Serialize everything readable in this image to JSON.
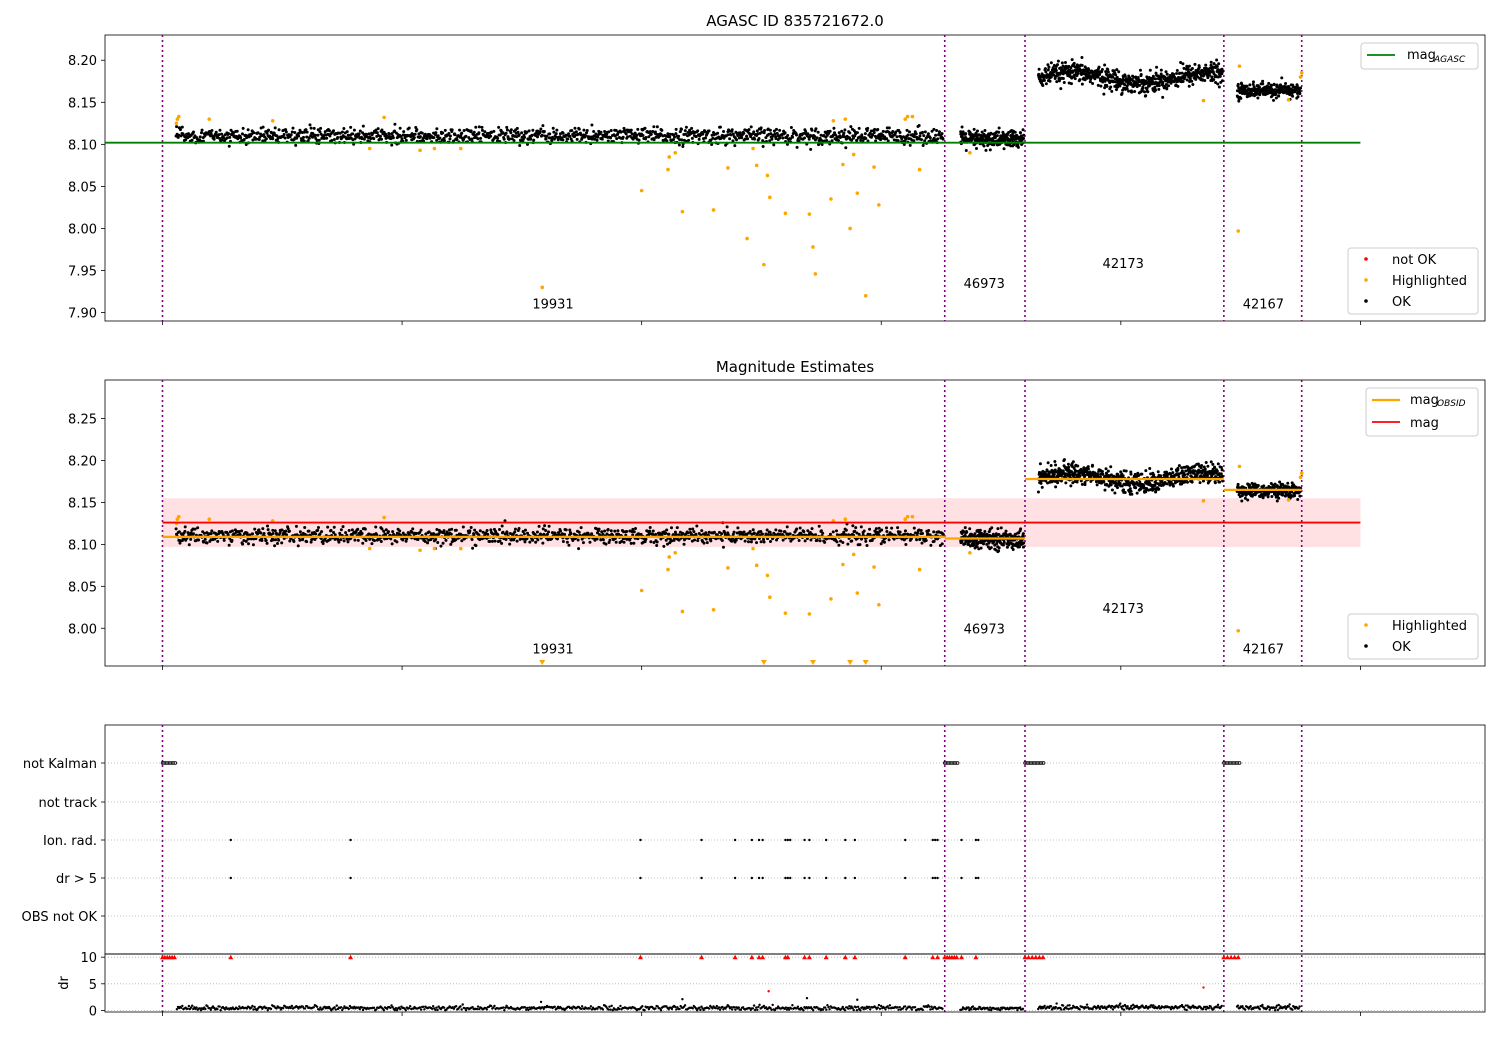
{
  "colors": {
    "ok": "#000000",
    "highlighted": "#ffa500",
    "not_ok": "#ff0000",
    "agasc_line": "#008000",
    "mag_line": "#ff0000",
    "obsid_line": "#ffa500",
    "band": "#ffe0e3",
    "vline": "#800080",
    "grid": "#b0b0b0"
  },
  "chart_data": [
    {
      "id": "top",
      "type": "scatter",
      "title": "AGASC ID 835721672.0",
      "xlim": [
        -240,
        5520
      ],
      "ylim": [
        7.89,
        8.23
      ],
      "xticks": [
        0,
        1000,
        2000,
        3000,
        4000,
        5000
      ],
      "yticks": [
        7.9,
        7.95,
        8.0,
        8.05,
        8.1,
        8.15,
        8.2
      ],
      "ytick_labels": [
        "7.90",
        "7.95",
        "8.00",
        "8.05",
        "8.10",
        "8.15",
        "8.20"
      ],
      "obs_boundaries": [
        0,
        3265,
        3600,
        4430,
        4755
      ],
      "obsid_labels": [
        {
          "text": "19931",
          "x": 1630,
          "y": 7.905
        },
        {
          "text": "46973",
          "x": 3430,
          "y": 7.929
        },
        {
          "text": "42173",
          "x": 4010,
          "y": 7.953
        },
        {
          "text": "42167",
          "x": 4595,
          "y": 7.905
        }
      ],
      "agasc_line": {
        "x": [
          -240,
          5000
        ],
        "y": 8.102
      },
      "ok_segments": [
        {
          "x0": 55,
          "x1": 3260,
          "base": 8.11,
          "spread": 0.008,
          "n": 1300
        },
        {
          "x0": 3330,
          "x1": 3595,
          "base": 8.106,
          "spread": 0.009,
          "n": 260
        },
        {
          "x0": 3655,
          "x1": 4425,
          "base": 8.179,
          "spread": 0.01,
          "n": 700
        },
        {
          "x0": 4485,
          "x1": 4750,
          "base": 8.164,
          "spread": 0.007,
          "n": 260
        }
      ],
      "highlighted": {
        "x": [
          58,
          62,
          68,
          195,
          460,
          865,
          925,
          1075,
          1135,
          1245,
          1585,
          2000,
          2110,
          2115,
          2140,
          2170,
          2300,
          2360,
          2440,
          2465,
          2480,
          2510,
          2525,
          2535,
          2600,
          2700,
          2715,
          2725,
          2790,
          2800,
          2840,
          2850,
          2870,
          2885,
          2900,
          2935,
          2970,
          2990,
          3100,
          3110,
          3130,
          3160,
          3370,
          4345,
          4490,
          4495,
          4700,
          4750,
          4755
        ],
        "y": [
          8.125,
          8.13,
          8.133,
          8.13,
          8.128,
          8.095,
          8.132,
          8.093,
          8.095,
          8.095,
          7.93,
          8.045,
          8.07,
          8.085,
          8.09,
          8.02,
          8.022,
          8.072,
          7.988,
          8.095,
          8.075,
          7.957,
          8.063,
          8.037,
          8.018,
          8.017,
          7.978,
          7.946,
          8.035,
          8.128,
          8.076,
          8.13,
          8.0,
          8.088,
          8.042,
          7.92,
          8.073,
          8.028,
          8.13,
          8.133,
          8.133,
          8.07,
          8.09,
          8.152,
          7.997,
          8.193,
          8.153,
          8.18,
          8.185
        ],
        "note": "x/y pairs; 4490→8.190 additional"
      },
      "legend": {
        "position": "top-right",
        "entries": [
          {
            "label": "mag",
            "sub": "AGASC",
            "color": "#008000"
          }
        ]
      },
      "legend2": {
        "position": "bottom-right",
        "entries": [
          {
            "label": "not OK",
            "color": "#ff0000"
          },
          {
            "label": "Highlighted",
            "color": "#ffa500"
          },
          {
            "label": "OK",
            "color": "#000000"
          }
        ]
      }
    },
    {
      "id": "middle",
      "type": "scatter",
      "title": "Magnitude Estimates",
      "xlim": [
        -240,
        5520
      ],
      "ylim": [
        7.955,
        8.296
      ],
      "xticks": [
        0,
        1000,
        2000,
        3000,
        4000,
        5000
      ],
      "yticks": [
        8.0,
        8.05,
        8.1,
        8.15,
        8.2,
        8.25
      ],
      "ytick_labels": [
        "8.00",
        "8.05",
        "8.10",
        "8.15",
        "8.20",
        "8.25"
      ],
      "obs_boundaries": [
        0,
        3265,
        3600,
        4430,
        4755
      ],
      "obsid_labels": [
        {
          "text": "19931",
          "x": 1630,
          "y": 7.97
        },
        {
          "text": "46973",
          "x": 3430,
          "y": 7.994
        },
        {
          "text": "42173",
          "x": 4010,
          "y": 8.018
        },
        {
          "text": "42167",
          "x": 4595,
          "y": 7.97
        }
      ],
      "mag_line": {
        "x": [
          0,
          5000
        ],
        "y": 8.126
      },
      "mag_band": {
        "x": [
          0,
          5000
        ],
        "y": [
          8.097,
          8.155
        ]
      },
      "obsid_lines": [
        {
          "x": [
            0,
            3265
          ],
          "y": 8.109
        },
        {
          "x": [
            3265,
            3600
          ],
          "y": 8.107
        },
        {
          "x": [
            3600,
            4430
          ],
          "y": 8.178
        },
        {
          "x": [
            4430,
            4755
          ],
          "y": 8.165
        }
      ],
      "ok_segments": [
        {
          "x0": 55,
          "x1": 3260,
          "base": 8.11,
          "spread": 0.008,
          "n": 1300
        },
        {
          "x0": 3330,
          "x1": 3595,
          "base": 8.106,
          "spread": 0.009,
          "n": 260
        },
        {
          "x0": 3655,
          "x1": 4425,
          "base": 8.179,
          "spread": 0.01,
          "n": 700
        },
        {
          "x0": 4485,
          "x1": 4750,
          "base": 8.164,
          "spread": 0.007,
          "n": 260
        }
      ],
      "highlighted": {
        "x": [
          58,
          62,
          68,
          195,
          460,
          865,
          925,
          1075,
          1135,
          1245,
          2000,
          2110,
          2115,
          2140,
          2170,
          2300,
          2360,
          2465,
          2480,
          2525,
          2535,
          2600,
          2700,
          2790,
          2800,
          2840,
          2850,
          2885,
          2900,
          2970,
          2990,
          3100,
          3110,
          3130,
          3160,
          3370,
          4345,
          4490,
          4495,
          4700,
          4750,
          4755
        ],
        "y": [
          8.125,
          8.13,
          8.133,
          8.13,
          8.128,
          8.095,
          8.132,
          8.093,
          8.095,
          8.095,
          8.045,
          8.07,
          8.085,
          8.09,
          8.02,
          8.022,
          8.072,
          8.095,
          8.075,
          8.063,
          8.037,
          8.018,
          8.017,
          8.035,
          8.128,
          8.076,
          8.13,
          8.088,
          8.042,
          8.073,
          8.028,
          8.13,
          8.133,
          8.133,
          8.07,
          8.09,
          8.152,
          7.997,
          8.193,
          8.153,
          8.18,
          8.185
        ]
      },
      "below_range_markers": [
        1585,
        2510,
        2715,
        2870,
        2935
      ],
      "legend": {
        "position": "top-right",
        "entries": [
          {
            "label": "mag",
            "sub": "OBSID",
            "color": "#ffa500"
          },
          {
            "label": "mag",
            "sub": "",
            "color": "#ff0000"
          }
        ]
      },
      "legend2": {
        "position": "bottom-right",
        "entries": [
          {
            "label": "Highlighted",
            "color": "#ffa500"
          },
          {
            "label": "OK",
            "color": "#000000"
          }
        ]
      }
    },
    {
      "id": "flags",
      "type": "scatter",
      "xlim": [
        -240,
        5520
      ],
      "categories": [
        "not Kalman",
        "not track",
        "Ion. rad.",
        "dr > 5",
        "OBS not OK"
      ],
      "not_kalman_ranges": [
        [
          0,
          55
        ],
        [
          3265,
          3320
        ],
        [
          3600,
          3680
        ],
        [
          4430,
          4500
        ]
      ],
      "ion_rad_x": [
        285,
        785,
        1995,
        2250,
        2390,
        2460,
        2490,
        2505,
        2600,
        2610,
        2620,
        2680,
        2700,
        2770,
        2850,
        2890,
        3100,
        3215,
        3225,
        3235,
        3335,
        3395,
        3405
      ],
      "dr_gt5_x": [
        285,
        785,
        1995,
        2250,
        2390,
        2460,
        2490,
        2505,
        2600,
        2610,
        2620,
        2680,
        2700,
        2770,
        2850,
        2890,
        3100,
        3215,
        3225,
        3235,
        3335,
        3395,
        3405
      ]
    },
    {
      "id": "dr",
      "type": "scatter",
      "ylabel": "dr",
      "xlim": [
        -240,
        5520
      ],
      "ylim": [
        -0.3,
        10.6
      ],
      "yticks": [
        0,
        5,
        10
      ],
      "ytick_labels": [
        "0",
        "5",
        "10"
      ],
      "xticks": [
        0,
        1000,
        2000,
        3000,
        4000,
        5000
      ],
      "dr_segments": [
        {
          "x0": 60,
          "x1": 3260,
          "base": 0.45,
          "spread": 0.35,
          "n": 700
        },
        {
          "x0": 3330,
          "x1": 3595,
          "base": 0.35,
          "spread": 0.3,
          "n": 70
        },
        {
          "x0": 3655,
          "x1": 4425,
          "base": 0.6,
          "spread": 0.45,
          "n": 200
        },
        {
          "x0": 4485,
          "x1": 4750,
          "base": 0.5,
          "spread": 0.35,
          "n": 70
        }
      ],
      "dr_outliers": {
        "x": [
          2170,
          2530,
          2690,
          2900,
          4345,
          1580
        ],
        "y": [
          2.1,
          3.6,
          2.3,
          2.0,
          4.3,
          1.6
        ]
      },
      "capped_x": [
        0,
        10,
        20,
        30,
        40,
        50,
        285,
        785,
        1995,
        2250,
        2390,
        2460,
        2490,
        2505,
        2600,
        2610,
        2680,
        2700,
        2770,
        2850,
        2890,
        3100,
        3215,
        3235,
        3265,
        3275,
        3285,
        3295,
        3305,
        3315,
        3335,
        3395,
        3600,
        3615,
        3630,
        3645,
        3660,
        3675,
        4430,
        4445,
        4460,
        4475,
        4490
      ],
      "capped_value": 10
    }
  ]
}
